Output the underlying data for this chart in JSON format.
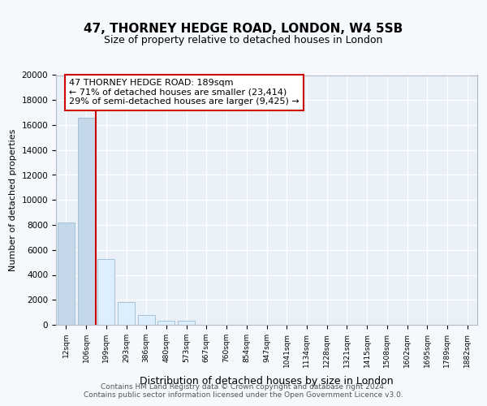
{
  "title1": "47, THORNEY HEDGE ROAD, LONDON, W4 5SB",
  "title2": "Size of property relative to detached houses in London",
  "xlabel": "Distribution of detached houses by size in London",
  "ylabel": "Number of detached properties",
  "categories": [
    "12sqm",
    "106sqm",
    "199sqm",
    "293sqm",
    "386sqm",
    "480sqm",
    "573sqm",
    "667sqm",
    "760sqm",
    "854sqm",
    "947sqm",
    "1041sqm",
    "1134sqm",
    "1228sqm",
    "1321sqm",
    "1415sqm",
    "1508sqm",
    "1602sqm",
    "1695sqm",
    "1789sqm",
    "1882sqm"
  ],
  "values": [
    8200,
    16600,
    5300,
    1800,
    800,
    350,
    300,
    0,
    0,
    0,
    0,
    0,
    0,
    0,
    0,
    0,
    0,
    0,
    0,
    0,
    0
  ],
  "bar_color_left": "#c5d8ea",
  "bar_color_right": "#ddeeff",
  "bar_edge_color": "#9bbcd0",
  "property_line_color": "#cc0000",
  "annotation_box_color": "#cc0000",
  "annotation_text": "47 THORNEY HEDGE ROAD: 189sqm\n← 71% of detached houses are smaller (23,414)\n29% of semi-detached houses are larger (9,425) →",
  "footer1": "Contains HM Land Registry data © Crown copyright and database right 2024.",
  "footer2": "Contains public sector information licensed under the Open Government Licence v3.0.",
  "ylim": [
    0,
    20000
  ],
  "bg_color": "#f5f8fc",
  "plot_bg_color": "#eaf0f8",
  "property_bar_index": 1
}
